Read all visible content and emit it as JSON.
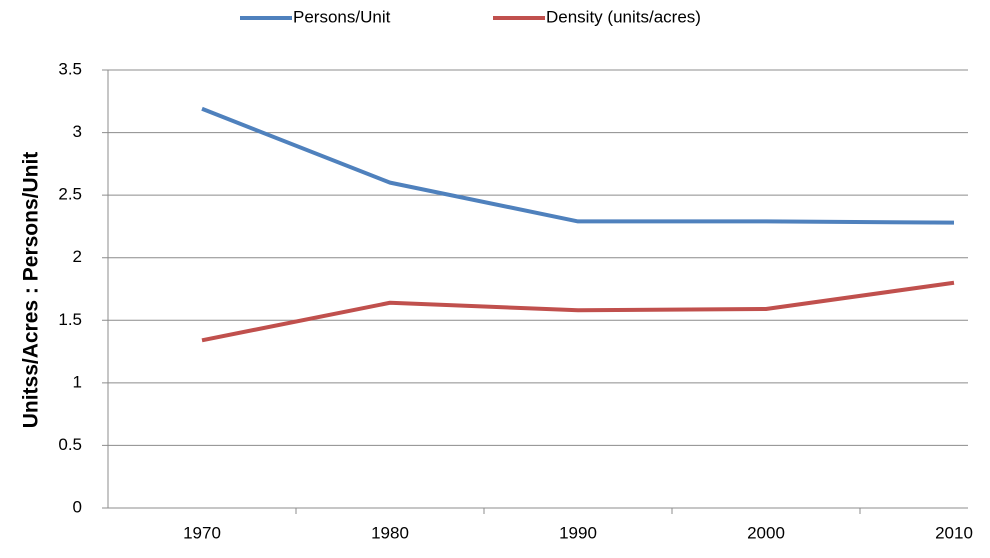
{
  "chart_data": {
    "type": "line",
    "y_label": "Unitss/Acres :  Persons/Unit",
    "categories": [
      "1970",
      "1980",
      "1990",
      "2000",
      "2010"
    ],
    "series": [
      {
        "name": "Persons/Unit",
        "color": "#4f81bd",
        "values": [
          3.19,
          2.6,
          2.29,
          2.29,
          2.28
        ]
      },
      {
        "name": "Density (units/acres)",
        "color": "#c0504d",
        "values": [
          1.34,
          1.64,
          1.58,
          1.59,
          1.8
        ]
      }
    ],
    "ylim": [
      0,
      3.5
    ],
    "yticks": [
      0,
      0.5,
      1,
      1.5,
      2,
      2.5,
      3,
      3.5
    ],
    "grid": true,
    "legend": "top"
  }
}
